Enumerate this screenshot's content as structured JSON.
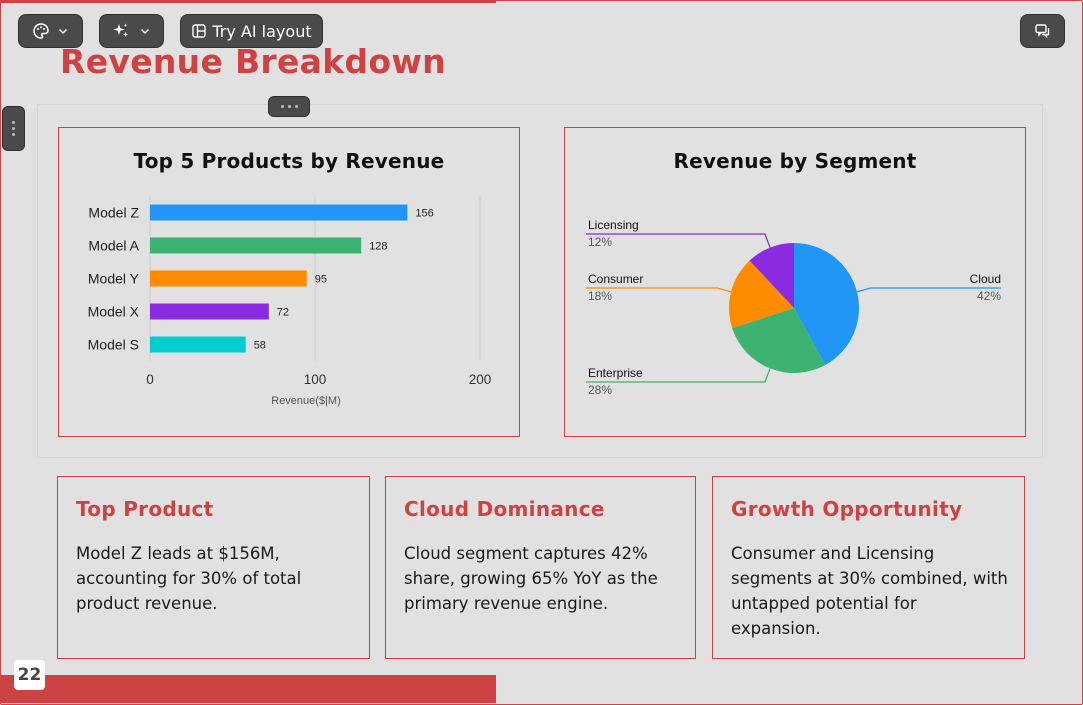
{
  "toolbar": {
    "ai_layout_label": "Try AI layout"
  },
  "slide": {
    "title": "Revenue Breakdown",
    "page_number": "22"
  },
  "charts": {
    "bar_title": "Top 5 Products by Revenue",
    "pie_title": "Revenue by Segment"
  },
  "chart_data": [
    {
      "type": "bar",
      "orientation": "horizontal",
      "title": "Top 5 Products by Revenue",
      "categories": [
        "Model Z",
        "Model A",
        "Model Y",
        "Model X",
        "Model S"
      ],
      "values": [
        156,
        128,
        95,
        72,
        58
      ],
      "colors": [
        "#2196f7",
        "#3cb371",
        "#ff8c00",
        "#8a2be2",
        "#00ced1"
      ],
      "xlabel": "Revenue($|M)",
      "xlim": [
        0,
        200
      ],
      "xticks": [
        0,
        100,
        200
      ],
      "grid": true
    },
    {
      "type": "pie",
      "title": "Revenue by Segment",
      "slices": [
        {
          "label": "Cloud",
          "value": 42,
          "pct_label": "42%",
          "color": "#2196f7"
        },
        {
          "label": "Enterprise",
          "value": 28,
          "pct_label": "28%",
          "color": "#3cb371"
        },
        {
          "label": "Consumer",
          "value": 18,
          "pct_label": "18%",
          "color": "#ff8c00"
        },
        {
          "label": "Licensing",
          "value": 12,
          "pct_label": "12%",
          "color": "#8a2be2"
        }
      ]
    }
  ],
  "cards": [
    {
      "title": "Top Product",
      "body": "Model Z leads at $156M, accounting for 30% of total product revenue."
    },
    {
      "title": "Cloud Dominance",
      "body": "Cloud segment captures 42% share, growing 65% YoY as the primary revenue engine."
    },
    {
      "title": "Growth Opportunity",
      "body": "Consumer and Licensing segments at 30% combined, with untapped potential for expansion."
    }
  ],
  "colors": {
    "accent": "#cf4244",
    "background": "#e2e1e1"
  },
  "icons": {
    "theme": "palette-icon",
    "ai": "sparkle-icon",
    "layout": "layout-icon",
    "comments": "comments-icon"
  }
}
